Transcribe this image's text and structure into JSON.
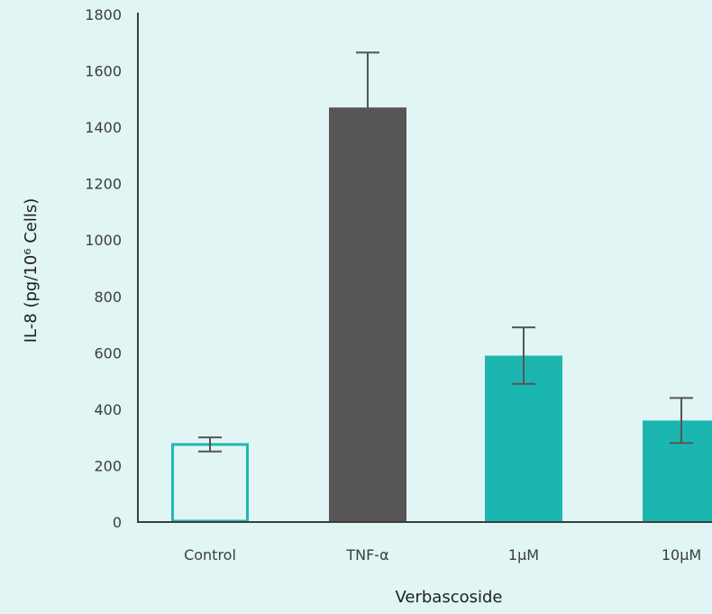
{
  "chart_data": {
    "type": "bar",
    "categories": [
      "Control",
      "TNF-α",
      "1μM",
      "10μM"
    ],
    "values": [
      275,
      1470,
      590,
      360
    ],
    "error": [
      25,
      195,
      100,
      80
    ],
    "bar_styles": [
      "outline",
      "solid",
      "solid",
      "solid"
    ],
    "ylim": [
      0,
      1800
    ],
    "yticks": [
      0,
      200,
      400,
      600,
      800,
      1000,
      1200,
      1400,
      1600,
      1800
    ],
    "ylabel": "IL-8 (pg/10⁶ Cells)",
    "xlabel": "Verbascoside",
    "grid": false,
    "colors": {
      "background": "#e0f5f4",
      "control": "#1fb8b2",
      "tnf": "#575556",
      "treatment": "#1cb6b1",
      "axis": "#3d3d3d",
      "error_bar": "#555555"
    }
  }
}
